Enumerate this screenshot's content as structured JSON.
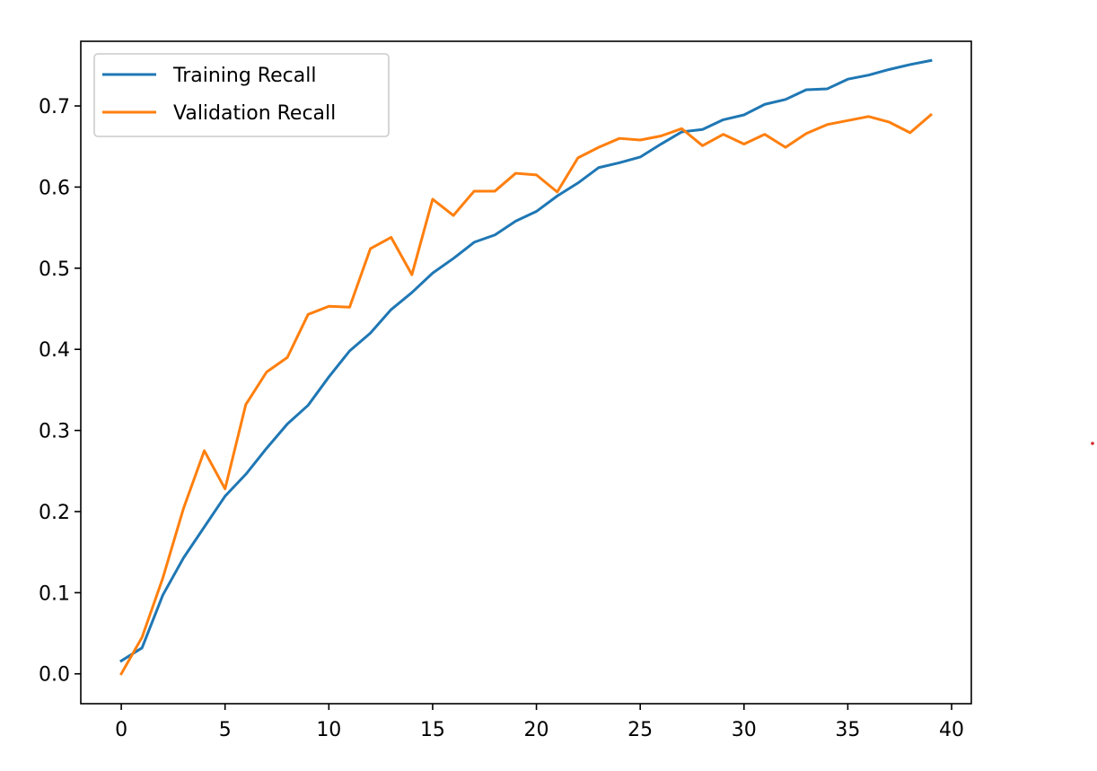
{
  "chart_data": {
    "type": "line",
    "title": "",
    "xlabel": "",
    "ylabel": "",
    "xlim": [
      -1.95,
      40.95
    ],
    "ylim": [
      -0.0368,
      0.7797
    ],
    "grid": false,
    "legend_position": "upper-left",
    "x_ticks": [
      0,
      5,
      10,
      15,
      20,
      25,
      30,
      35,
      40
    ],
    "x_tick_labels": [
      "0",
      "5",
      "10",
      "15",
      "20",
      "25",
      "30",
      "35",
      "40"
    ],
    "y_ticks": [
      0.0,
      0.1,
      0.2,
      0.3,
      0.4,
      0.5,
      0.6,
      0.7
    ],
    "y_tick_labels": [
      "0.0",
      "0.1",
      "0.2",
      "0.3",
      "0.4",
      "0.5",
      "0.6",
      "0.7"
    ],
    "x": [
      0,
      1,
      2,
      3,
      4,
      5,
      6,
      7,
      8,
      9,
      10,
      11,
      12,
      13,
      14,
      15,
      16,
      17,
      18,
      19,
      20,
      21,
      22,
      23,
      24,
      25,
      26,
      27,
      28,
      29,
      30,
      31,
      32,
      33,
      34,
      35,
      36,
      37,
      38,
      39
    ],
    "series": [
      {
        "name": "Training Recall",
        "color": "#1f77b4",
        "values": [
          0.016,
          0.032,
          0.097,
          0.143,
          0.181,
          0.219,
          0.246,
          0.278,
          0.308,
          0.331,
          0.366,
          0.398,
          0.42,
          0.449,
          0.47,
          0.494,
          0.512,
          0.532,
          0.541,
          0.558,
          0.57,
          0.589,
          0.605,
          0.624,
          0.63,
          0.637,
          0.653,
          0.668,
          0.671,
          0.683,
          0.689,
          0.702,
          0.708,
          0.72,
          0.721,
          0.733,
          0.738,
          0.745,
          0.751,
          0.756
        ]
      },
      {
        "name": "Validation Recall",
        "color": "#ff7f0e",
        "values": [
          0.0,
          0.045,
          0.118,
          0.204,
          0.275,
          0.228,
          0.332,
          0.372,
          0.39,
          0.443,
          0.453,
          0.452,
          0.524,
          0.538,
          0.492,
          0.585,
          0.565,
          0.595,
          0.595,
          0.617,
          0.615,
          0.594,
          0.636,
          0.649,
          0.66,
          0.658,
          0.663,
          0.672,
          0.651,
          0.665,
          0.653,
          0.665,
          0.649,
          0.666,
          0.677,
          0.682,
          0.687,
          0.68,
          0.667,
          0.689
        ]
      }
    ]
  }
}
